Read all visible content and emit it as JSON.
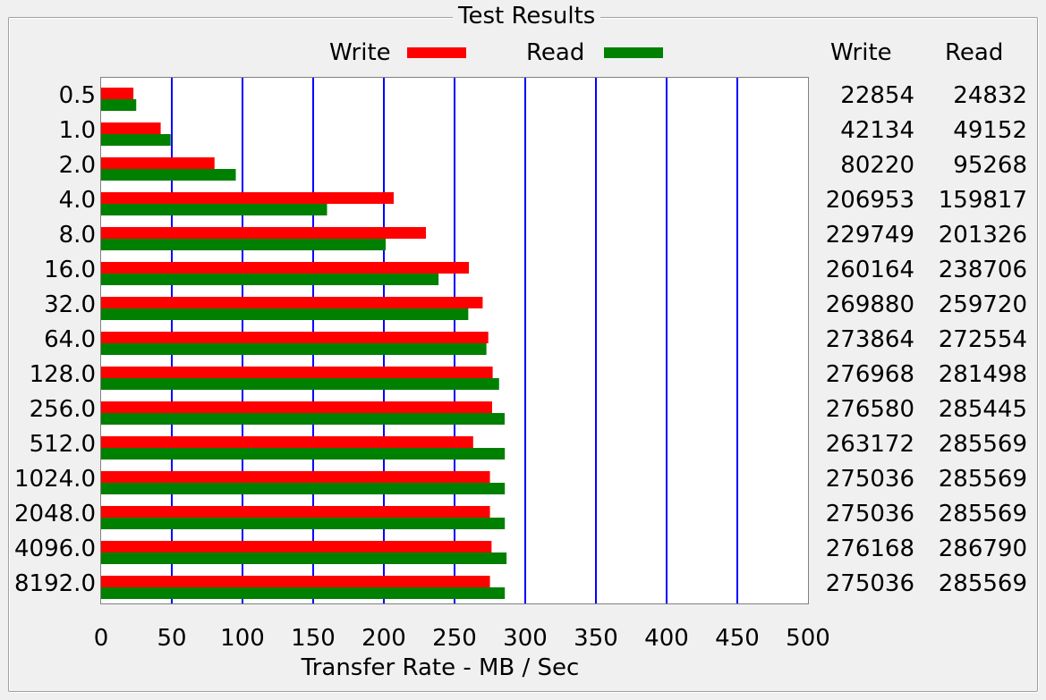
{
  "panel": {
    "title": "Test Results",
    "column_headers": {
      "write": "Write",
      "read": "Read"
    }
  },
  "colors": {
    "write": "#ff0000",
    "read": "#008000",
    "grid": "#0000ff"
  },
  "chart_data": {
    "type": "bar",
    "orientation": "horizontal",
    "title": "",
    "xlabel": "Transfer Rate - MB / Sec",
    "ylabel": "",
    "xlim": [
      0,
      500
    ],
    "x_ticks": [
      "0",
      "50",
      "100",
      "150",
      "200",
      "250",
      "300",
      "350",
      "400",
      "450",
      "500"
    ],
    "grid": "vertical lines at 50 MB/Sec steps",
    "legend_position": "top",
    "categories": [
      "0.5",
      "1.0",
      "2.0",
      "4.0",
      "8.0",
      "16.0",
      "32.0",
      "64.0",
      "128.0",
      "256.0",
      "512.0",
      "1024.0",
      "2048.0",
      "4096.0",
      "8192.0"
    ],
    "series": [
      {
        "name": "Write",
        "values": [
          22854,
          42134,
          80220,
          206953,
          229749,
          260164,
          269880,
          273864,
          276968,
          276580,
          263172,
          275036,
          275036,
          276168,
          275036
        ]
      },
      {
        "name": "Read",
        "values": [
          24832,
          49152,
          95268,
          159817,
          201326,
          238706,
          259720,
          272554,
          281498,
          285445,
          285569,
          285569,
          285569,
          286790,
          285569
        ]
      }
    ]
  }
}
